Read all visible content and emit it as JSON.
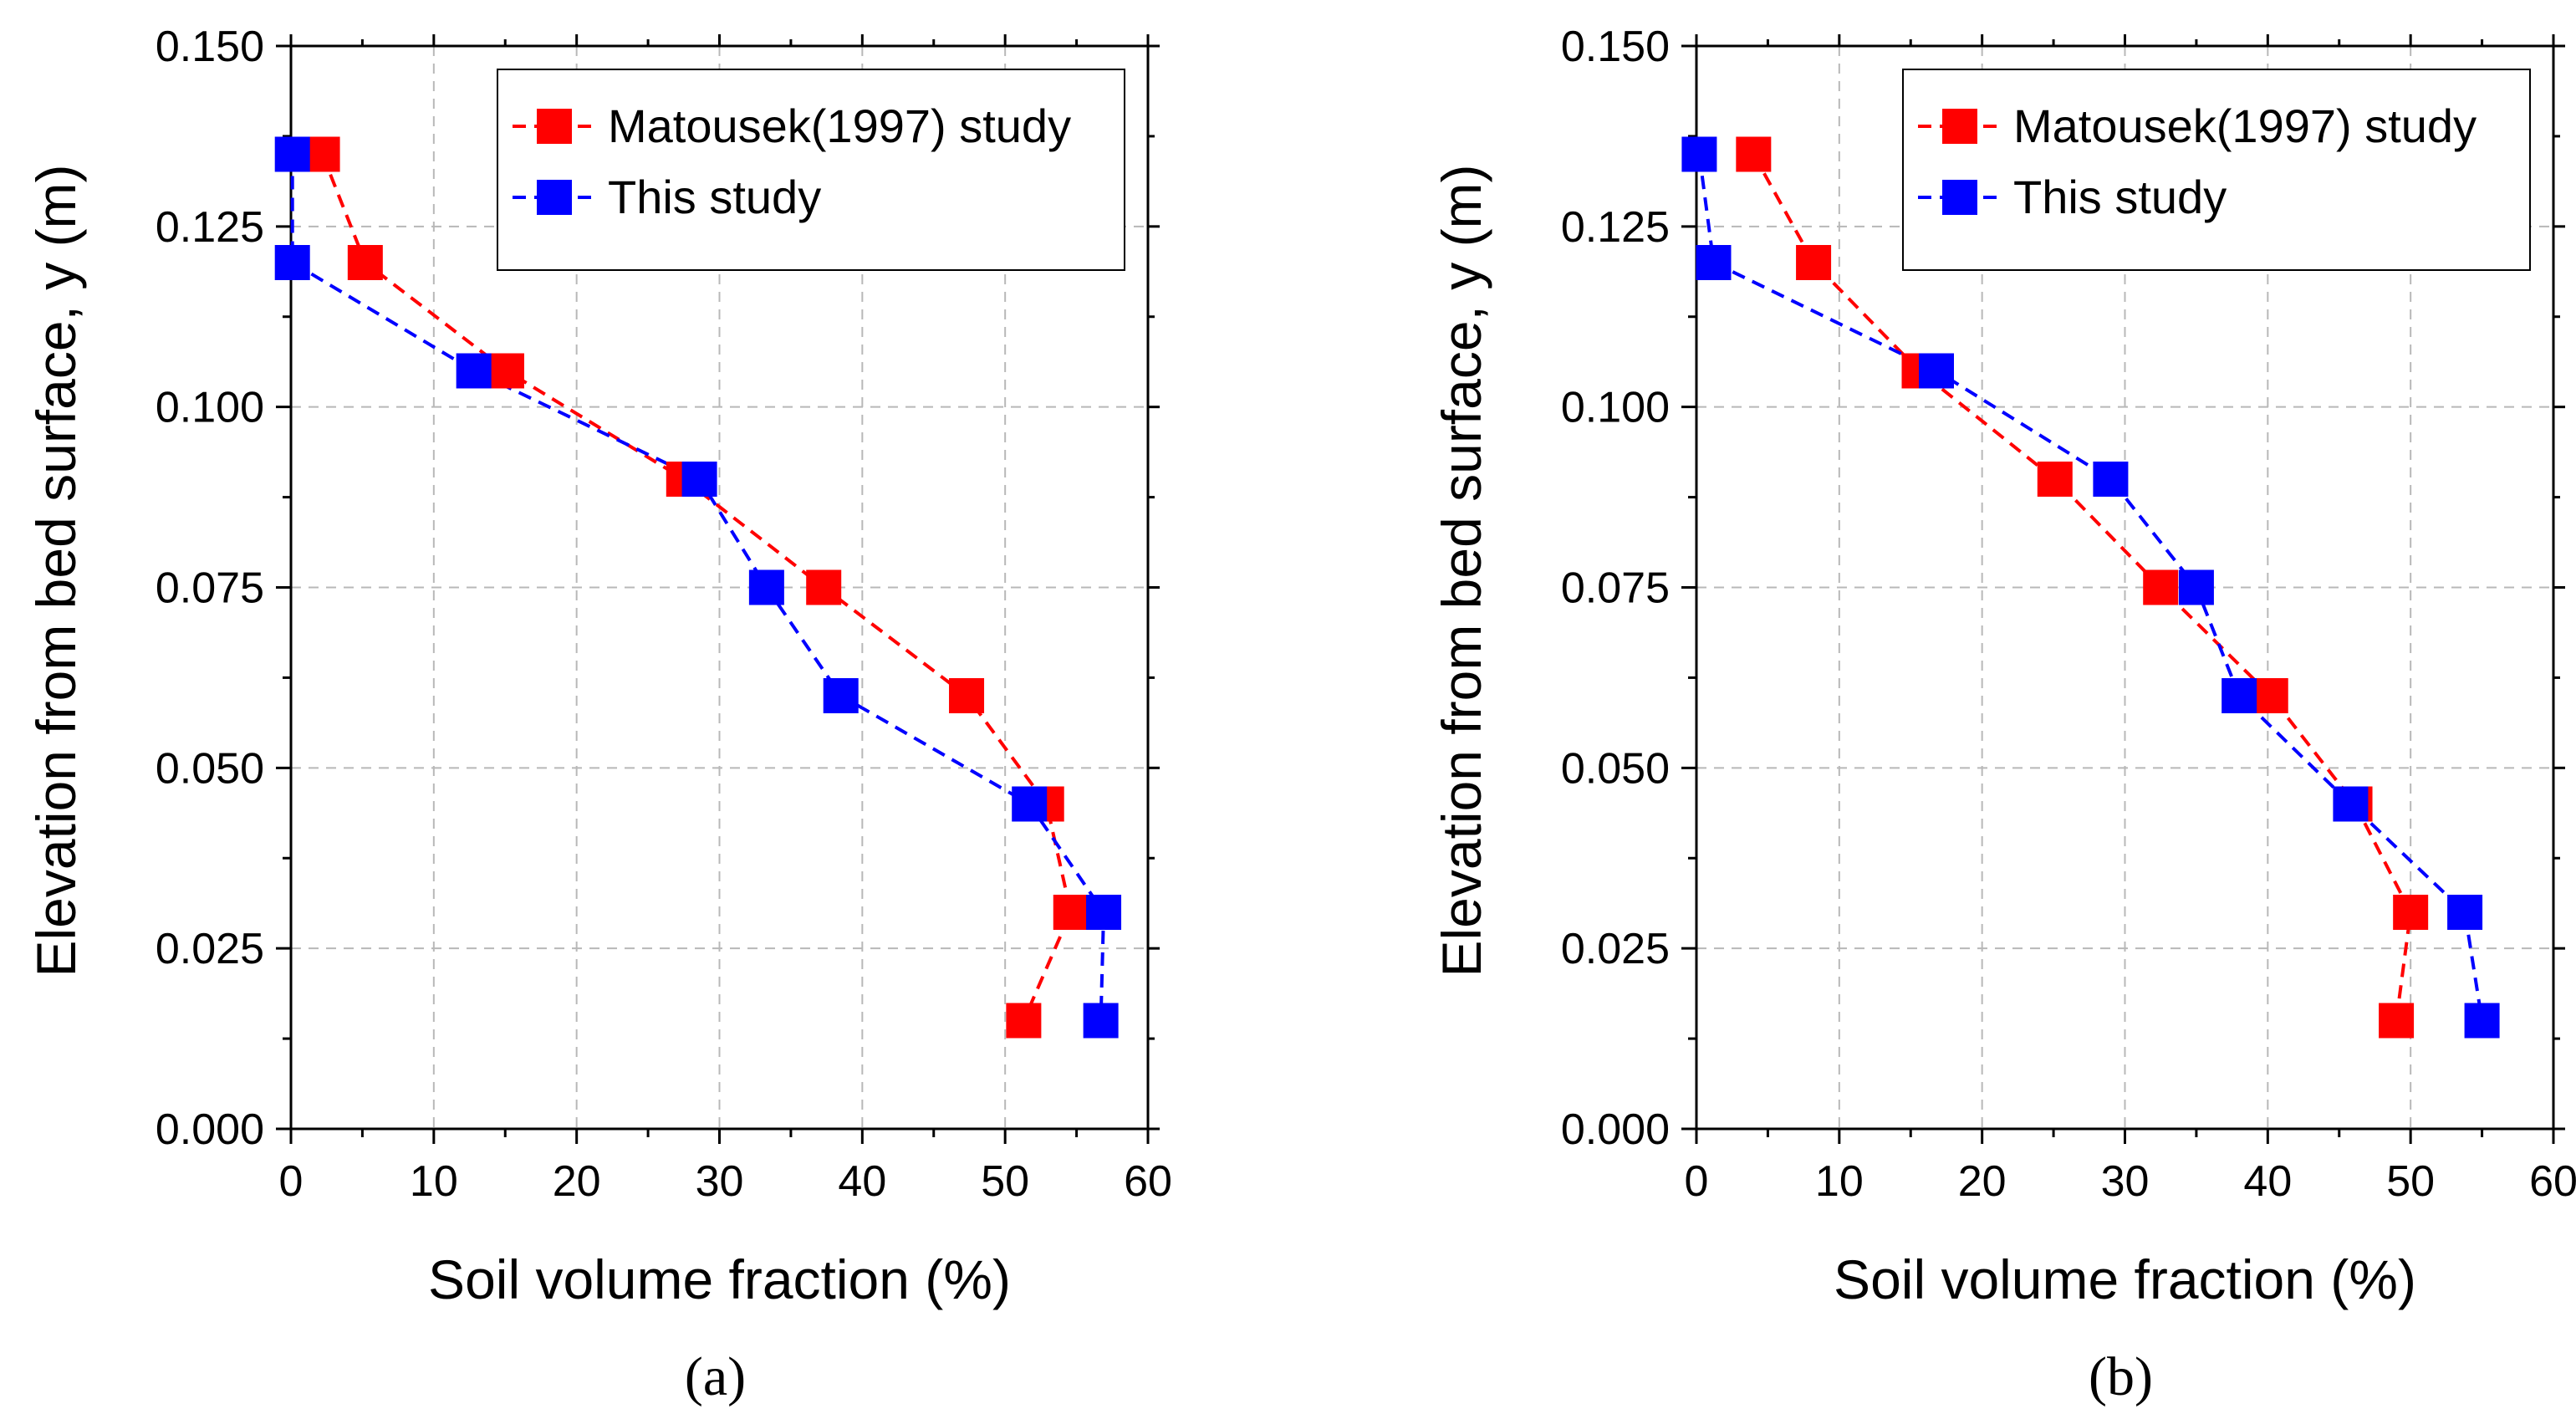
{
  "chart_data": [
    {
      "type": "line",
      "panel_label": "(a)",
      "xlabel": "Soil volume fraction (%)",
      "ylabel": "Elevation from bed surface, y (m)",
      "xlim": [
        0,
        60
      ],
      "ylim": [
        0.0,
        0.15
      ],
      "xticks": [
        "0",
        "10",
        "20",
        "30",
        "40",
        "50",
        "60"
      ],
      "yticks": [
        "0.000",
        "0.025",
        "0.050",
        "0.075",
        "0.100",
        "0.125",
        "0.150"
      ],
      "grid": true,
      "legend_position": "top-right",
      "series": [
        {
          "name": "Matousek(1997) study",
          "color": "#ff0000",
          "x": [
            2.2,
            5.2,
            15.1,
            27.5,
            37.3,
            47.3,
            52.9,
            54.6,
            51.3
          ],
          "y": [
            0.135,
            0.12,
            0.105,
            0.09,
            0.075,
            0.06,
            0.045,
            0.03,
            0.015
          ]
        },
        {
          "name": "This study",
          "color": "#0000ff",
          "x": [
            0.1,
            0.1,
            12.8,
            28.6,
            33.3,
            38.5,
            51.7,
            56.9,
            56.7
          ],
          "y": [
            0.135,
            0.12,
            0.105,
            0.09,
            0.075,
            0.06,
            0.045,
            0.03,
            0.015
          ]
        }
      ]
    },
    {
      "type": "line",
      "panel_label": "(b)",
      "xlabel": "Soil volume fraction (%)",
      "ylabel": "Elevation from bed surface, y (m)",
      "xlim": [
        0,
        60
      ],
      "ylim": [
        0.0,
        0.15
      ],
      "xticks": [
        "0",
        "10",
        "20",
        "30",
        "40",
        "50",
        "60"
      ],
      "yticks": [
        "0.000",
        "0.025",
        "0.050",
        "0.075",
        "0.100",
        "0.125",
        "0.150"
      ],
      "grid": true,
      "legend_position": "top-right",
      "series": [
        {
          "name": "Matousek(1997) study",
          "color": "#ff0000",
          "x": [
            4.0,
            8.2,
            15.6,
            25.1,
            32.5,
            40.2,
            46.1,
            50.0,
            49.0
          ],
          "y": [
            0.135,
            0.12,
            0.105,
            0.09,
            0.075,
            0.06,
            0.045,
            0.03,
            0.015
          ]
        },
        {
          "name": "This study",
          "color": "#0000ff",
          "x": [
            0.2,
            1.2,
            16.8,
            29.0,
            35.0,
            38.0,
            45.8,
            53.8,
            55.0
          ],
          "y": [
            0.135,
            0.12,
            0.105,
            0.09,
            0.075,
            0.06,
            0.045,
            0.03,
            0.015
          ]
        }
      ]
    }
  ]
}
